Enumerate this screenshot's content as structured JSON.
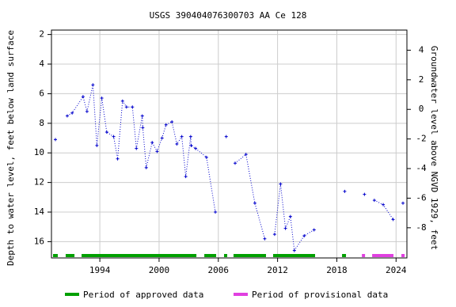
{
  "chart_data": {
    "type": "line",
    "title": "USGS 390404076300703 AA Ce 128",
    "ylabel": "Depth to water level, feet below land surface",
    "y2label": "Groundwater level above NGVD 1929, feet",
    "xlim": [
      1989.1,
      2025.1
    ],
    "xticks": [
      1994,
      2000,
      2006,
      2012,
      2018,
      2024
    ],
    "ylim": [
      17.1,
      1.7
    ],
    "yticks": [
      2,
      4,
      6,
      8,
      10,
      12,
      14,
      16
    ],
    "y2lim": [
      -10.04,
      5.36
    ],
    "y2ticks": [
      4,
      2,
      0,
      -2,
      -4,
      -6,
      -8
    ],
    "grid": true,
    "series": [
      {
        "color": "#0000cc",
        "x": [
          1989.5,
          null,
          1990.7,
          1991.2,
          1992.3,
          1992.7,
          1993.3,
          1993.7,
          1994.2,
          1994.7,
          1995.4,
          1995.8,
          1996.3,
          1996.7,
          1997.3,
          1997.7,
          1998.3,
          1998.35,
          1998.7,
          1999.3,
          1999.8,
          2000.3,
          2000.7,
          2001.3,
          2001.8,
          2002.3,
          2002.7,
          2003.2,
          2003.25,
          2003.7,
          2004.8,
          2005.7,
          null,
          2006.8,
          null,
          2007.7,
          2008.8,
          2009.7,
          2010.7,
          null,
          2011.7,
          2012.3,
          2012.8,
          2013.3,
          2013.7,
          2014.7,
          2015.7,
          null,
          2018.8,
          null,
          2020.8,
          null,
          2021.8,
          2022.7,
          2023.7,
          null,
          2024.7
        ],
        "values": [
          9.1,
          null,
          7.5,
          7.3,
          6.2,
          7.2,
          5.4,
          9.5,
          6.3,
          8.6,
          8.9,
          10.4,
          6.5,
          6.9,
          6.9,
          9.7,
          7.5,
          8.3,
          11.0,
          9.3,
          9.9,
          9.0,
          8.1,
          7.9,
          9.4,
          8.9,
          11.6,
          8.9,
          9.5,
          9.7,
          10.3,
          14.0,
          null,
          8.9,
          null,
          10.7,
          10.1,
          13.4,
          15.8,
          null,
          15.5,
          12.1,
          15.1,
          14.3,
          16.6,
          15.6,
          15.2,
          null,
          12.6,
          null,
          12.8,
          null,
          13.2,
          13.5,
          14.5,
          null,
          13.4
        ]
      }
    ],
    "periods": [
      {
        "name": "Period of approved data",
        "color": "#00a000",
        "ranges": [
          [
            1989.26,
            1989.74
          ],
          [
            1990.54,
            1991.43
          ],
          [
            1992.15,
            2003.78
          ],
          [
            2004.58,
            2005.78
          ],
          [
            2006.58,
            2006.9
          ],
          [
            2007.54,
            2010.83
          ],
          [
            2011.55,
            2015.8
          ],
          [
            2018.53,
            2018.93
          ]
        ]
      },
      {
        "name": "Period of provisional data",
        "color": "#e040e0",
        "ranges": [
          [
            2020.54,
            2020.86
          ],
          [
            2021.58,
            2023.74
          ],
          [
            2024.54,
            2024.87
          ]
        ]
      }
    ]
  }
}
